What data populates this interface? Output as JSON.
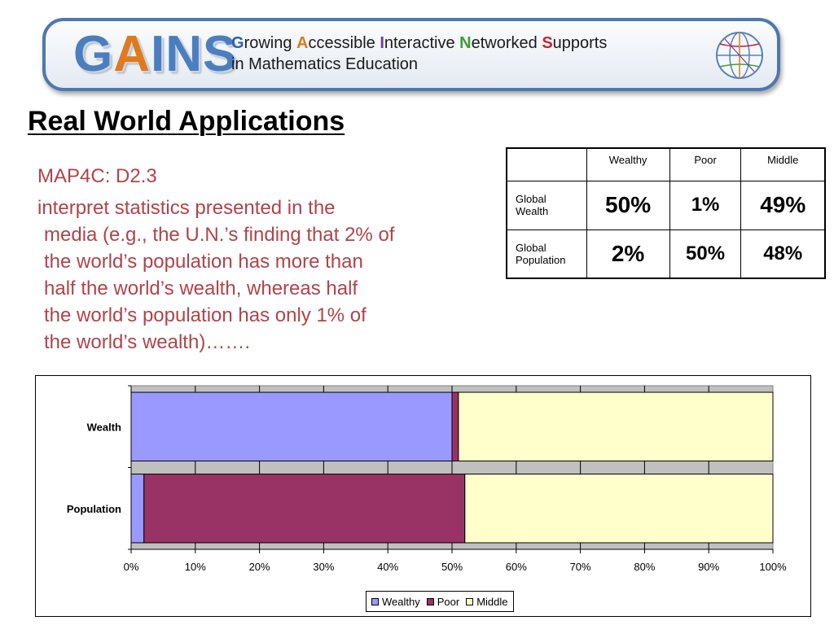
{
  "banner": {
    "logo_g": "G",
    "logo_a": "A",
    "logo_rest": "INS",
    "line1": [
      {
        "cap": "G",
        "rest": "rowing ",
        "cls": "cap-g"
      },
      {
        "cap": "A",
        "rest": "ccessible ",
        "cls": "cap-a"
      },
      {
        "cap": "I",
        "rest": "nteractive ",
        "cls": "cap-i"
      },
      {
        "cap": "N",
        "rest": "etworked ",
        "cls": "cap-n"
      },
      {
        "cap": "S",
        "rest": "upports",
        "cls": "cap-s"
      }
    ],
    "line2": "in Mathematics Education",
    "globe_icon": "globe-icon"
  },
  "title": "Real World Applications",
  "expectation": {
    "code": "MAP4C: D2.3",
    "desc_lines": [
      "interpret statistics presented in the",
      "media (e.g., the U.N.’s finding that 2% of",
      "the world’s population has more than",
      "half the world’s wealth, whereas  half",
      "the world’s population has only 1% of",
      "the world’s wealth)……."
    ]
  },
  "table": {
    "headers": [
      "",
      "Wealthy",
      "Poor",
      "Middle"
    ],
    "rows": [
      {
        "label_line1": "Global",
        "label_line2": "Wealth",
        "values": [
          "50%",
          "1%",
          "49%"
        ]
      },
      {
        "label_line1": "Global",
        "label_line2": "Population",
        "values": [
          "2%",
          "50%",
          "48%"
        ]
      }
    ]
  },
  "chart_data": {
    "type": "bar",
    "orientation": "horizontal",
    "stacked": true,
    "categories": [
      "Wealth",
      "Population"
    ],
    "series": [
      {
        "name": "Wealthy",
        "values": [
          50,
          2
        ],
        "color": "#9999ff"
      },
      {
        "name": "Poor",
        "values": [
          1,
          50
        ],
        "color": "#993366"
      },
      {
        "name": "Middle",
        "values": [
          49,
          48
        ],
        "color": "#ffffcc"
      }
    ],
    "xlim": [
      0,
      100
    ],
    "x_ticks": [
      "0%",
      "10%",
      "20%",
      "30%",
      "40%",
      "50%",
      "60%",
      "70%",
      "80%",
      "90%",
      "100%"
    ],
    "grid": true,
    "plot_background": "#c0c0c0",
    "legend_position": "bottom"
  }
}
